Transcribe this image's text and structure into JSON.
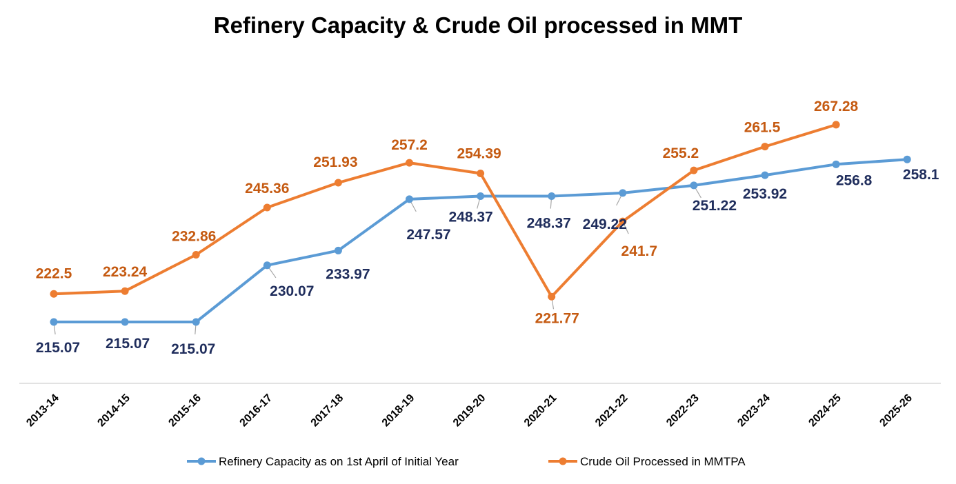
{
  "chart_data": {
    "type": "line",
    "title": "Refinery Capacity & Crude Oil processed in MMT",
    "xlabel": "",
    "ylabel": "",
    "ylim": [
      200,
      275
    ],
    "grid": false,
    "legend_position": "bottom",
    "categories": [
      "2013-14",
      "2014-15",
      "2015-16",
      "2016-17",
      "2017-18",
      "2018-19",
      "2019-20",
      "2020-21",
      "2021-22",
      "2022-23",
      "2023-24",
      "2024-25",
      "2025-26"
    ],
    "series": [
      {
        "name": "Refinery Capacity as on 1st April of Initial Year",
        "color": "#5B9BD5",
        "label_color": "#1F2D5C",
        "values": [
          215.07,
          215.07,
          215.07,
          230.07,
          233.97,
          247.57,
          248.37,
          248.37,
          249.22,
          251.22,
          253.92,
          256.8,
          258.1
        ],
        "labels": [
          "215.07",
          "215.07",
          "215.07",
          "230.07",
          "233.97",
          "247.57",
          "248.37",
          "248.37",
          "249.22",
          "251.22",
          "253.92",
          "256.8",
          "258.1"
        ]
      },
      {
        "name": "Crude Oil Processed in MMTPA",
        "color": "#ED7D31",
        "label_color": "#C55A11",
        "values": [
          222.5,
          223.24,
          232.86,
          245.36,
          251.93,
          257.2,
          254.39,
          221.77,
          241.7,
          255.2,
          261.5,
          267.28,
          null
        ],
        "labels": [
          "222.5",
          "223.24",
          "232.86",
          "245.36",
          "251.93",
          "257.2",
          "254.39",
          "221.77",
          "241.7",
          "255.2",
          "261.5",
          "267.28",
          null
        ]
      }
    ]
  }
}
